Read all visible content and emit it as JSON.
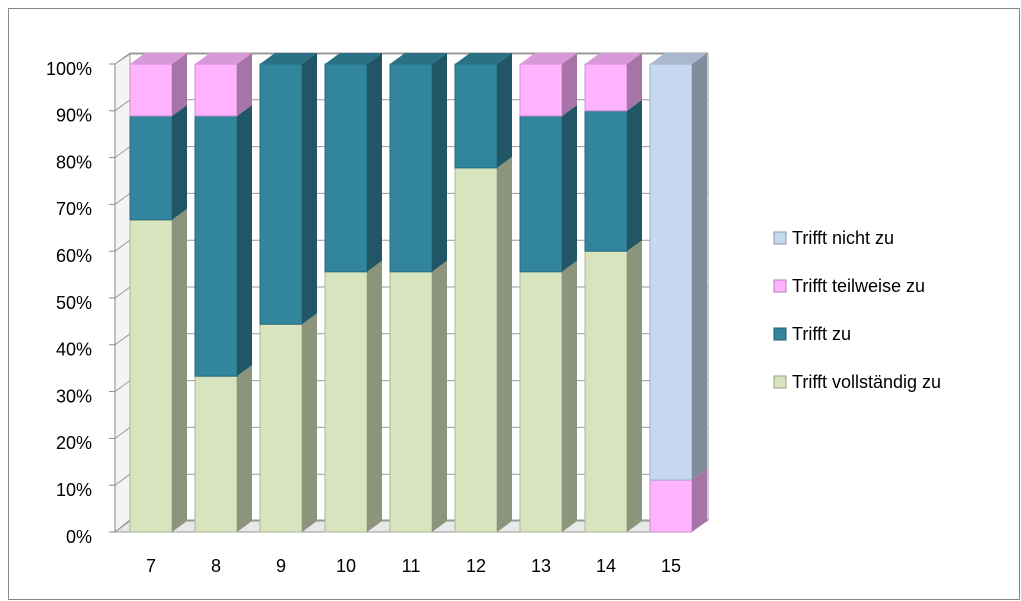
{
  "chart_data": {
    "type": "bar",
    "stacked": true,
    "percent": true,
    "categories": [
      "7",
      "8",
      "9",
      "10",
      "11",
      "12",
      "13",
      "14",
      "15"
    ],
    "series": [
      {
        "name": "Trifft vollständig zu",
        "color": "#d7e4bd",
        "values": [
          66.7,
          33.3,
          44.4,
          55.6,
          55.6,
          77.8,
          55.6,
          60,
          0
        ]
      },
      {
        "name": "Trifft zu",
        "color": "#31859c",
        "values": [
          22.2,
          55.6,
          55.6,
          44.4,
          44.4,
          22.2,
          33.3,
          30,
          0
        ]
      },
      {
        "name": "Trifft teilweise zu",
        "color": "#ffb3ff",
        "values": [
          11.1,
          11.1,
          0,
          0,
          0,
          0,
          11.1,
          10,
          11.1
        ]
      },
      {
        "name": "Trifft nicht zu",
        "color": "#c6d9f1",
        "values": [
          0,
          0,
          0,
          0,
          0,
          0,
          0,
          0,
          88.9
        ]
      }
    ],
    "ylim": [
      0,
      100
    ],
    "yticks": [
      {
        "value": 0,
        "label": "0%"
      },
      {
        "value": 10,
        "label": "10%"
      },
      {
        "value": 20,
        "label": "20%"
      },
      {
        "value": 30,
        "label": "30%"
      },
      {
        "value": 40,
        "label": "40%"
      },
      {
        "value": 50,
        "label": "50%"
      },
      {
        "value": 60,
        "label": "60%"
      },
      {
        "value": 70,
        "label": "70%"
      },
      {
        "value": 80,
        "label": "80%"
      },
      {
        "value": 90,
        "label": "90%"
      },
      {
        "value": 100,
        "label": "100%"
      }
    ],
    "grid": true,
    "legend": "right"
  }
}
